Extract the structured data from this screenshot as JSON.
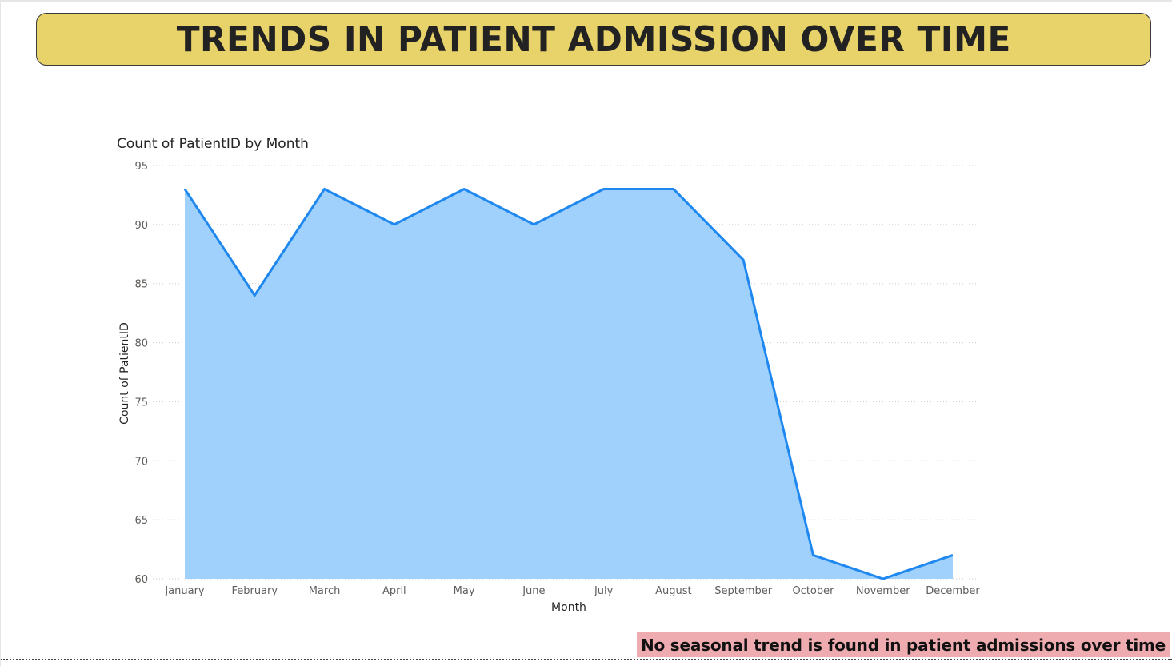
{
  "banner": {
    "title": "TRENDS IN PATIENT ADMISSION OVER TIME"
  },
  "footer": {
    "note": "No seasonal trend is found in patient admissions over time"
  },
  "colors": {
    "banner_bg": "#e8d36a",
    "line": "#1e88f0",
    "area": "#a0d0fc",
    "note_bg": "#eeabb0"
  },
  "chart_data": {
    "type": "area",
    "title": "Count of PatientID by Month",
    "xlabel": "Month",
    "ylabel": "Count of PatientID",
    "categories": [
      "January",
      "February",
      "March",
      "April",
      "May",
      "June",
      "July",
      "August",
      "September",
      "October",
      "November",
      "December"
    ],
    "series": [
      {
        "values": [
          93,
          84,
          93,
          90,
          93,
          90,
          93,
          93,
          87,
          62,
          60,
          62
        ]
      }
    ],
    "ylim": [
      60,
      95
    ],
    "yticks": [
      60,
      65,
      70,
      75,
      80,
      85,
      90,
      95
    ],
    "grid": true,
    "legend": "none"
  }
}
